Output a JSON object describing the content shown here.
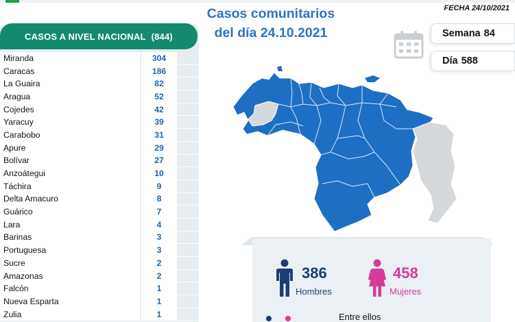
{
  "header": {
    "title_line1": "Casos comunitarios",
    "title_line2": "del día 24.10.2021",
    "fecha": "FECHA 24/10/2021"
  },
  "table": {
    "header_label": "CASOS A NIVEL NACIONAL",
    "header_count": "(844)",
    "rows": [
      {
        "name": "Miranda",
        "value": "304"
      },
      {
        "name": "Caracas",
        "value": "186"
      },
      {
        "name": "La Guaira",
        "value": "82"
      },
      {
        "name": "Aragua",
        "value": "52"
      },
      {
        "name": "Cojedes",
        "value": "42"
      },
      {
        "name": "Yaracuy",
        "value": "39"
      },
      {
        "name": "Carabobo",
        "value": "31"
      },
      {
        "name": "Apure",
        "value": "29"
      },
      {
        "name": "Bolívar",
        "value": "27"
      },
      {
        "name": "Anzoátegui",
        "value": "10"
      },
      {
        "name": "Táchira",
        "value": "9"
      },
      {
        "name": "Delta Amacuro",
        "value": "8"
      },
      {
        "name": "Guárico",
        "value": "7"
      },
      {
        "name": "Lara",
        "value": "4"
      },
      {
        "name": "Barinas",
        "value": "3"
      },
      {
        "name": "Portuguesa",
        "value": "3"
      },
      {
        "name": "Sucre",
        "value": "2"
      },
      {
        "name": "Amazonas",
        "value": "2"
      },
      {
        "name": "Falcón",
        "value": "1"
      },
      {
        "name": "Nueva Esparta",
        "value": "1"
      },
      {
        "name": "Zulia",
        "value": "1"
      }
    ]
  },
  "badges": {
    "semana_label": "Semana",
    "semana_value": "84",
    "dia_label": "Día",
    "dia_value": "588"
  },
  "stats": {
    "hombres_value": "386",
    "hombres_label": "Hombres",
    "mujeres_value": "458",
    "mujeres_label": "Mujeres",
    "entre_label": "Entre ellos"
  },
  "colors": {
    "header_green": "#128a6e",
    "title_blue": "#2c74c6",
    "value_blue": "#1f62b2",
    "map_blue": "#1e6fc4",
    "men_navy": "#1d3e73",
    "women_pink": "#d63a9b"
  }
}
